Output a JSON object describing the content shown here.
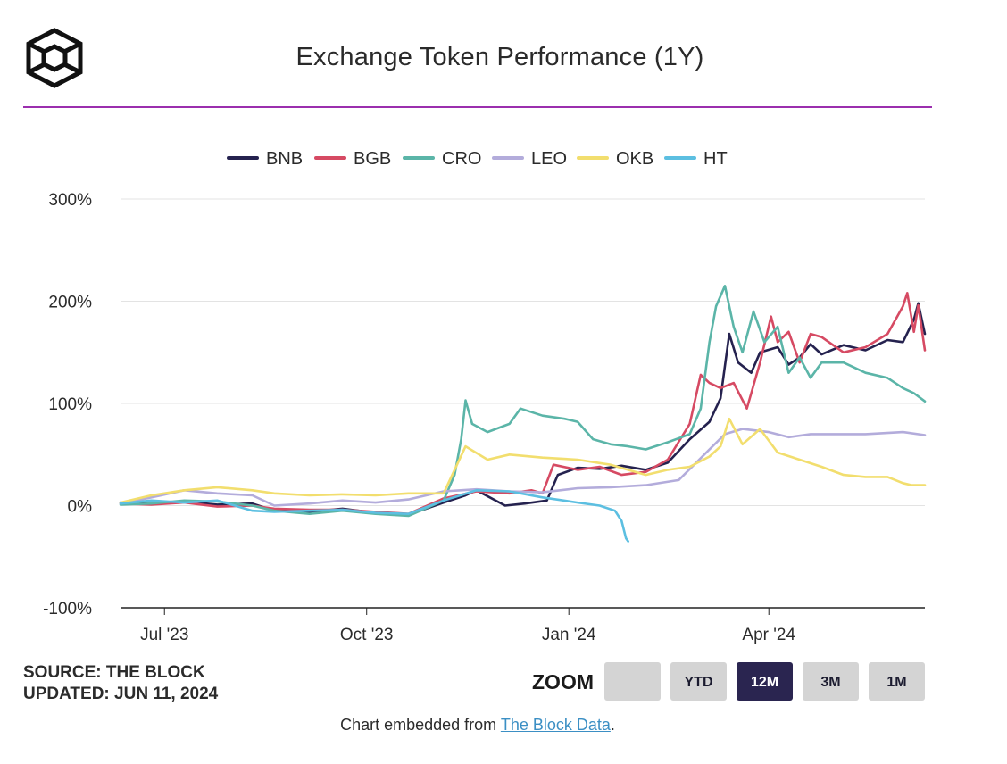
{
  "header": {
    "title": "Exchange Token Performance (1Y)"
  },
  "footer": {
    "source": "SOURCE: THE BLOCK",
    "updated": "UPDATED: JUN 11, 2024",
    "embed_prefix": "Chart embedded from ",
    "embed_link": "The Block Data",
    "embed_suffix": "."
  },
  "zoom": {
    "label": "ZOOM",
    "buttons": [
      "",
      "YTD",
      "12M",
      "3M",
      "1M"
    ],
    "active": "12M"
  },
  "chart_data": {
    "type": "line",
    "title": "Exchange Token Performance (1Y)",
    "xlabel": "",
    "ylabel": "",
    "ylim": [
      -100,
      300
    ],
    "yticks": [
      "300%",
      "200%",
      "100%",
      "0%",
      "-100%"
    ],
    "ytick_values": [
      300,
      200,
      100,
      0,
      -100
    ],
    "xlim": [
      "2023-06-11",
      "2024-06-11"
    ],
    "xticks": [
      {
        "label": "Jul '23",
        "date": "2023-07-01"
      },
      {
        "label": "Oct '23",
        "date": "2023-10-01"
      },
      {
        "label": "Jan '24",
        "date": "2024-01-01"
      },
      {
        "label": "Apr '24",
        "date": "2024-04-01"
      }
    ],
    "grid": "horizontal",
    "legend": "top",
    "series": [
      {
        "name": "BNB",
        "color": "#25224f",
        "points": [
          [
            "2023-06-11",
            3
          ],
          [
            "2023-06-25",
            3
          ],
          [
            "2023-07-10",
            4
          ],
          [
            "2023-07-25",
            1
          ],
          [
            "2023-08-10",
            2
          ],
          [
            "2023-08-20",
            -5
          ],
          [
            "2023-09-05",
            -6
          ],
          [
            "2023-09-20",
            -3
          ],
          [
            "2023-10-05",
            -7
          ],
          [
            "2023-10-20",
            -9
          ],
          [
            "2023-11-05",
            3
          ],
          [
            "2023-11-15",
            10
          ],
          [
            "2023-11-20",
            15
          ],
          [
            "2023-12-03",
            0
          ],
          [
            "2023-12-12",
            2
          ],
          [
            "2023-12-22",
            5
          ],
          [
            "2023-12-27",
            30
          ],
          [
            "2024-01-05",
            37
          ],
          [
            "2024-01-15",
            36
          ],
          [
            "2024-01-25",
            39
          ],
          [
            "2024-02-05",
            35
          ],
          [
            "2024-02-15",
            42
          ],
          [
            "2024-02-25",
            65
          ],
          [
            "2024-03-05",
            82
          ],
          [
            "2024-03-10",
            105
          ],
          [
            "2024-03-14",
            168
          ],
          [
            "2024-03-18",
            140
          ],
          [
            "2024-03-24",
            130
          ],
          [
            "2024-03-28",
            150
          ],
          [
            "2024-04-05",
            155
          ],
          [
            "2024-04-10",
            138
          ],
          [
            "2024-04-15",
            145
          ],
          [
            "2024-04-20",
            158
          ],
          [
            "2024-04-25",
            148
          ],
          [
            "2024-05-05",
            157
          ],
          [
            "2024-05-15",
            152
          ],
          [
            "2024-05-25",
            162
          ],
          [
            "2024-06-01",
            160
          ],
          [
            "2024-06-06",
            182
          ],
          [
            "2024-06-08",
            198
          ],
          [
            "2024-06-11",
            168
          ]
        ]
      },
      {
        "name": "BGB",
        "color": "#d64a63",
        "points": [
          [
            "2023-06-11",
            2
          ],
          [
            "2023-06-25",
            1
          ],
          [
            "2023-07-10",
            3
          ],
          [
            "2023-07-25",
            -1
          ],
          [
            "2023-08-10",
            0
          ],
          [
            "2023-08-20",
            -3
          ],
          [
            "2023-09-05",
            -4
          ],
          [
            "2023-09-20",
            -4
          ],
          [
            "2023-10-05",
            -6
          ],
          [
            "2023-10-20",
            -8
          ],
          [
            "2023-11-05",
            7
          ],
          [
            "2023-11-20",
            14
          ],
          [
            "2023-12-05",
            12
          ],
          [
            "2023-12-15",
            15
          ],
          [
            "2023-12-20",
            12
          ],
          [
            "2023-12-25",
            40
          ],
          [
            "2024-01-05",
            35
          ],
          [
            "2024-01-15",
            38
          ],
          [
            "2024-01-25",
            30
          ],
          [
            "2024-02-05",
            33
          ],
          [
            "2024-02-15",
            45
          ],
          [
            "2024-02-25",
            80
          ],
          [
            "2024-03-01",
            128
          ],
          [
            "2024-03-05",
            120
          ],
          [
            "2024-03-10",
            115
          ],
          [
            "2024-03-16",
            120
          ],
          [
            "2024-03-22",
            95
          ],
          [
            "2024-03-28",
            140
          ],
          [
            "2024-04-02",
            185
          ],
          [
            "2024-04-05",
            160
          ],
          [
            "2024-04-10",
            170
          ],
          [
            "2024-04-15",
            140
          ],
          [
            "2024-04-20",
            168
          ],
          [
            "2024-04-25",
            165
          ],
          [
            "2024-05-05",
            150
          ],
          [
            "2024-05-15",
            155
          ],
          [
            "2024-05-25",
            168
          ],
          [
            "2024-06-01",
            195
          ],
          [
            "2024-06-03",
            208
          ],
          [
            "2024-06-06",
            170
          ],
          [
            "2024-06-08",
            196
          ],
          [
            "2024-06-11",
            152
          ]
        ]
      },
      {
        "name": "CRO",
        "color": "#5bb5a8",
        "points": [
          [
            "2023-06-11",
            1
          ],
          [
            "2023-06-25",
            2
          ],
          [
            "2023-07-10",
            5
          ],
          [
            "2023-07-25",
            4
          ],
          [
            "2023-08-10",
            0
          ],
          [
            "2023-08-20",
            -5
          ],
          [
            "2023-09-05",
            -8
          ],
          [
            "2023-09-20",
            -5
          ],
          [
            "2023-10-05",
            -8
          ],
          [
            "2023-10-20",
            -10
          ],
          [
            "2023-11-05",
            5
          ],
          [
            "2023-11-10",
            30
          ],
          [
            "2023-11-13",
            65
          ],
          [
            "2023-11-15",
            103
          ],
          [
            "2023-11-18",
            80
          ],
          [
            "2023-11-25",
            72
          ],
          [
            "2023-12-05",
            80
          ],
          [
            "2023-12-10",
            95
          ],
          [
            "2023-12-20",
            88
          ],
          [
            "2023-12-30",
            85
          ],
          [
            "2024-01-05",
            82
          ],
          [
            "2024-01-12",
            65
          ],
          [
            "2024-01-20",
            60
          ],
          [
            "2024-01-28",
            58
          ],
          [
            "2024-02-05",
            55
          ],
          [
            "2024-02-15",
            62
          ],
          [
            "2024-02-25",
            70
          ],
          [
            "2024-03-01",
            95
          ],
          [
            "2024-03-05",
            160
          ],
          [
            "2024-03-08",
            195
          ],
          [
            "2024-03-12",
            215
          ],
          [
            "2024-03-16",
            175
          ],
          [
            "2024-03-20",
            150
          ],
          [
            "2024-03-25",
            190
          ],
          [
            "2024-03-30",
            160
          ],
          [
            "2024-04-05",
            175
          ],
          [
            "2024-04-10",
            130
          ],
          [
            "2024-04-15",
            145
          ],
          [
            "2024-04-20",
            125
          ],
          [
            "2024-04-25",
            140
          ],
          [
            "2024-05-05",
            140
          ],
          [
            "2024-05-15",
            130
          ],
          [
            "2024-05-25",
            125
          ],
          [
            "2024-06-01",
            115
          ],
          [
            "2024-06-06",
            110
          ],
          [
            "2024-06-11",
            102
          ]
        ]
      },
      {
        "name": "LEO",
        "color": "#b3acdb",
        "points": [
          [
            "2023-06-11",
            2
          ],
          [
            "2023-06-25",
            8
          ],
          [
            "2023-07-10",
            15
          ],
          [
            "2023-07-25",
            12
          ],
          [
            "2023-08-10",
            10
          ],
          [
            "2023-08-20",
            0
          ],
          [
            "2023-09-05",
            2
          ],
          [
            "2023-09-20",
            5
          ],
          [
            "2023-10-05",
            3
          ],
          [
            "2023-10-20",
            6
          ],
          [
            "2023-11-05",
            14
          ],
          [
            "2023-11-20",
            16
          ],
          [
            "2023-12-05",
            14
          ],
          [
            "2023-12-20",
            13
          ],
          [
            "2024-01-05",
            17
          ],
          [
            "2024-01-20",
            18
          ],
          [
            "2024-02-05",
            20
          ],
          [
            "2024-02-20",
            25
          ],
          [
            "2024-03-05",
            55
          ],
          [
            "2024-03-12",
            70
          ],
          [
            "2024-03-20",
            75
          ],
          [
            "2024-04-01",
            72
          ],
          [
            "2024-04-10",
            67
          ],
          [
            "2024-04-20",
            70
          ],
          [
            "2024-05-01",
            70
          ],
          [
            "2024-05-15",
            70
          ],
          [
            "2024-06-01",
            72
          ],
          [
            "2024-06-11",
            69
          ]
        ]
      },
      {
        "name": "OKB",
        "color": "#f2de6e",
        "points": [
          [
            "2023-06-11",
            3
          ],
          [
            "2023-06-25",
            10
          ],
          [
            "2023-07-10",
            15
          ],
          [
            "2023-07-25",
            18
          ],
          [
            "2023-08-10",
            15
          ],
          [
            "2023-08-20",
            12
          ],
          [
            "2023-09-05",
            10
          ],
          [
            "2023-09-20",
            11
          ],
          [
            "2023-10-05",
            10
          ],
          [
            "2023-10-20",
            12
          ],
          [
            "2023-11-05",
            12
          ],
          [
            "2023-11-10",
            35
          ],
          [
            "2023-11-15",
            58
          ],
          [
            "2023-11-25",
            45
          ],
          [
            "2023-12-05",
            50
          ],
          [
            "2023-12-20",
            47
          ],
          [
            "2024-01-05",
            45
          ],
          [
            "2024-01-20",
            40
          ],
          [
            "2024-02-05",
            30
          ],
          [
            "2024-02-15",
            35
          ],
          [
            "2024-02-25",
            38
          ],
          [
            "2024-03-05",
            48
          ],
          [
            "2024-03-10",
            58
          ],
          [
            "2024-03-14",
            85
          ],
          [
            "2024-03-20",
            60
          ],
          [
            "2024-03-28",
            75
          ],
          [
            "2024-04-05",
            52
          ],
          [
            "2024-04-15",
            45
          ],
          [
            "2024-04-25",
            38
          ],
          [
            "2024-05-05",
            30
          ],
          [
            "2024-05-15",
            28
          ],
          [
            "2024-05-25",
            28
          ],
          [
            "2024-06-01",
            22
          ],
          [
            "2024-06-05",
            20
          ],
          [
            "2024-06-11",
            20
          ]
        ]
      },
      {
        "name": "HT",
        "color": "#5cbfe1",
        "points": [
          [
            "2023-06-11",
            2
          ],
          [
            "2023-06-25",
            5
          ],
          [
            "2023-07-10",
            3
          ],
          [
            "2023-07-25",
            5
          ],
          [
            "2023-08-10",
            -5
          ],
          [
            "2023-08-20",
            -6
          ],
          [
            "2023-09-05",
            -5
          ],
          [
            "2023-09-20",
            -4
          ],
          [
            "2023-10-05",
            -7
          ],
          [
            "2023-10-20",
            -8
          ],
          [
            "2023-11-05",
            5
          ],
          [
            "2023-11-20",
            15
          ],
          [
            "2023-12-05",
            14
          ],
          [
            "2023-12-20",
            8
          ],
          [
            "2024-01-05",
            3
          ],
          [
            "2024-01-15",
            0
          ],
          [
            "2024-01-22",
            -5
          ],
          [
            "2024-01-25",
            -15
          ],
          [
            "2024-01-27",
            -32
          ],
          [
            "2024-01-28",
            -35
          ]
        ]
      }
    ]
  }
}
